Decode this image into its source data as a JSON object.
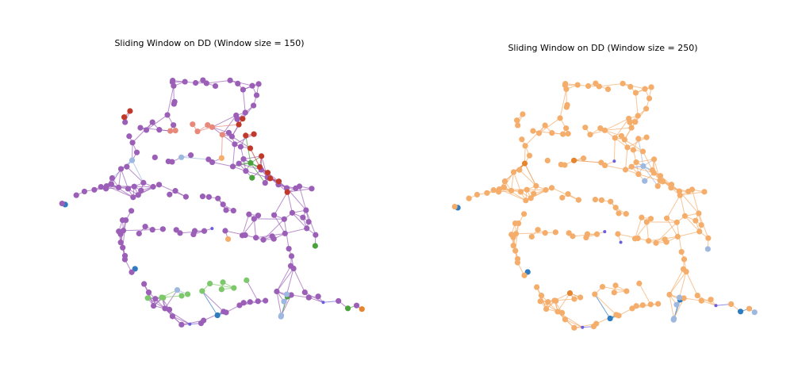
{
  "panels": [
    {
      "title": "Sliding Window on DD (Window size = 150)"
    },
    {
      "title": "Sliding Window on DD (Window size = 250)"
    }
  ]
}
